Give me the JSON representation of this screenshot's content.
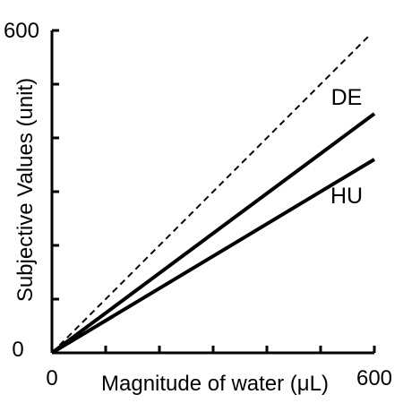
{
  "chart_data": {
    "type": "line",
    "title": "",
    "xlabel": "Magnitude of water (μL)",
    "ylabel": "Subjective Values (unit)",
    "xlim": [
      0,
      600
    ],
    "ylim": [
      0,
      600
    ],
    "x_ticks": [
      0,
      100,
      200,
      300,
      400,
      500,
      600
    ],
    "y_ticks": [
      0,
      100,
      200,
      300,
      400,
      500,
      600
    ],
    "x_tick_labels": [
      {
        "value": 0,
        "label": "0"
      },
      {
        "value": 600,
        "label": "600"
      }
    ],
    "y_tick_labels": [
      {
        "value": 0,
        "label": "0"
      },
      {
        "value": 600,
        "label": "600"
      }
    ],
    "grid": false,
    "series": [
      {
        "name": "",
        "style": "dashed",
        "color": "#000000",
        "x": [
          0,
          590
        ],
        "y": [
          0,
          590
        ]
      },
      {
        "name": "DE",
        "style": "solid",
        "color": "#000000",
        "x": [
          0,
          600
        ],
        "y": [
          0,
          445
        ]
      },
      {
        "name": "HU",
        "style": "solid",
        "color": "#000000",
        "x": [
          0,
          600
        ],
        "y": [
          0,
          360
        ]
      }
    ]
  }
}
